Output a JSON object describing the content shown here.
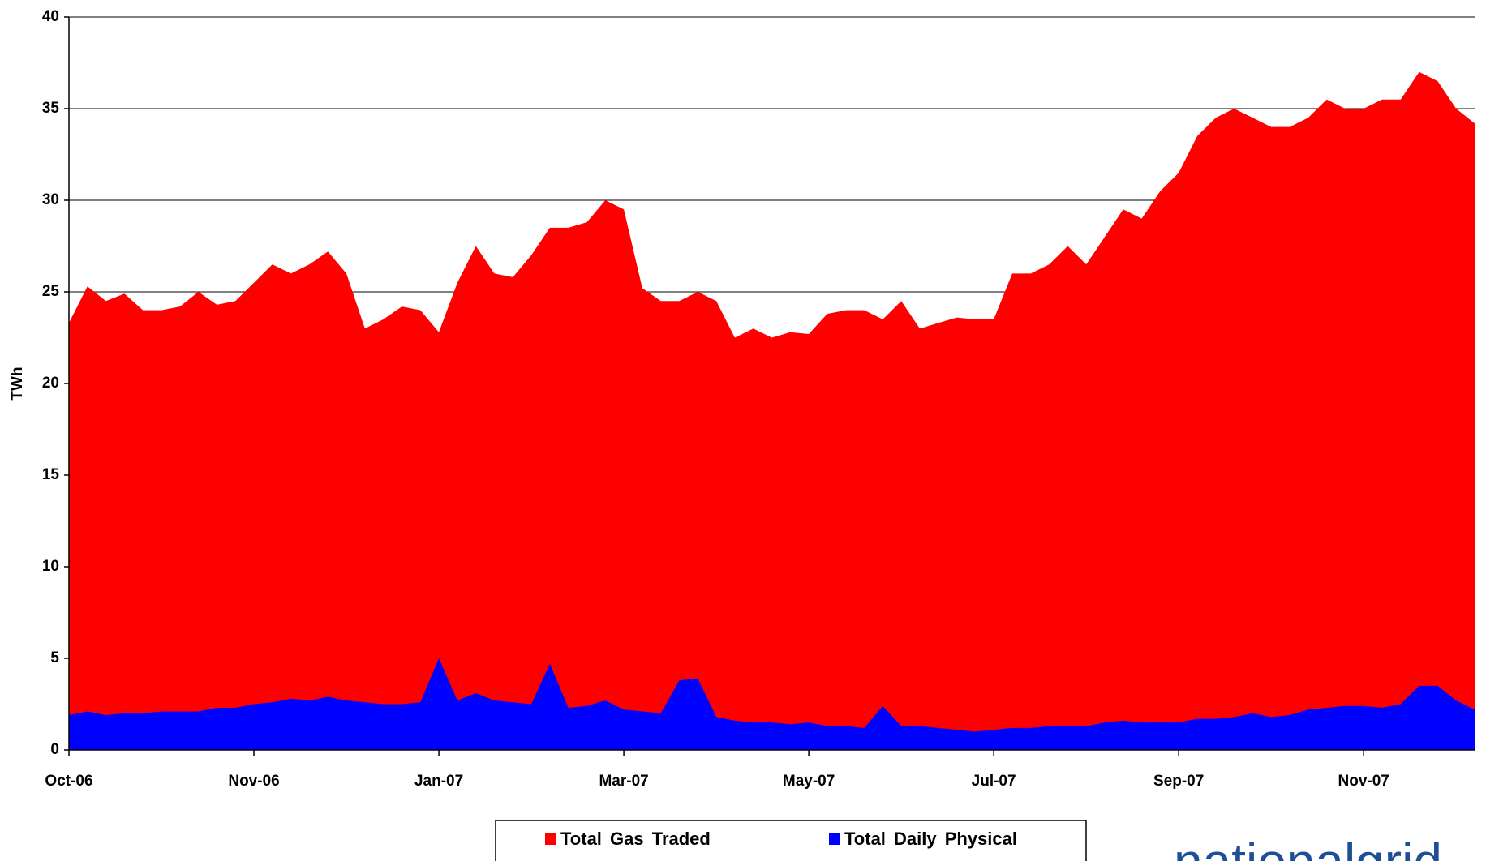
{
  "chart_data": {
    "type": "area",
    "y_label": "TWh",
    "logo": "nationalgrid",
    "categories": [
      "Oct-06",
      null,
      null,
      null,
      null,
      null,
      null,
      null,
      null,
      null,
      "Nov-06",
      null,
      null,
      null,
      null,
      null,
      null,
      null,
      null,
      null,
      "Jan-07",
      null,
      null,
      null,
      null,
      null,
      null,
      null,
      null,
      null,
      "Mar-07",
      null,
      null,
      null,
      null,
      null,
      null,
      null,
      null,
      null,
      "May-07",
      null,
      null,
      null,
      null,
      null,
      null,
      null,
      null,
      null,
      "Jul-07",
      null,
      null,
      null,
      null,
      null,
      null,
      null,
      null,
      null,
      "Sep-07",
      null,
      null,
      null,
      null,
      null,
      null,
      null,
      null,
      null,
      "Nov-07",
      null,
      null,
      null,
      null,
      null,
      null
    ],
    "series": [
      {
        "name": "Total Gas Traded",
        "color": "#ff0000",
        "values": [
          23.3,
          25.3,
          24.5,
          24.9,
          24.0,
          24.0,
          24.2,
          25.0,
          24.3,
          24.5,
          25.5,
          26.5,
          26.0,
          26.5,
          27.2,
          26.0,
          23.0,
          23.5,
          24.2,
          24.0,
          22.8,
          25.5,
          27.5,
          26.0,
          25.8,
          27.0,
          28.5,
          28.5,
          28.8,
          30.0,
          29.5,
          25.2,
          24.5,
          24.5,
          25.0,
          24.5,
          22.5,
          23.0,
          22.5,
          22.8,
          22.7,
          23.8,
          24.0,
          24.0,
          23.5,
          24.5,
          23.0,
          23.3,
          23.6,
          23.5,
          23.5,
          26.0,
          26.0,
          26.5,
          27.5,
          26.5,
          28.0,
          29.5,
          29.0,
          30.5,
          31.5,
          33.5,
          34.5,
          35.0,
          34.5,
          34.0,
          34.0,
          34.5,
          35.5,
          35.0,
          35.0,
          35.5,
          35.5,
          37.0,
          36.5,
          35.0,
          34.2
        ]
      },
      {
        "name": "Total Daily Physical",
        "color": "#0000ff",
        "values": [
          1.9,
          2.1,
          1.9,
          2.0,
          2.0,
          2.1,
          2.1,
          2.1,
          2.3,
          2.3,
          2.5,
          2.6,
          2.8,
          2.7,
          2.9,
          2.7,
          2.6,
          2.5,
          2.5,
          2.6,
          5.0,
          2.7,
          3.1,
          2.7,
          2.6,
          2.5,
          4.7,
          2.3,
          2.4,
          2.7,
          2.2,
          2.1,
          2.0,
          3.8,
          3.9,
          1.8,
          1.6,
          1.5,
          1.5,
          1.4,
          1.5,
          1.3,
          1.3,
          1.2,
          2.4,
          1.3,
          1.3,
          1.2,
          1.1,
          1.0,
          1.1,
          1.2,
          1.2,
          1.3,
          1.3,
          1.3,
          1.5,
          1.6,
          1.5,
          1.5,
          1.5,
          1.7,
          1.7,
          1.8,
          2.0,
          1.8,
          1.9,
          2.2,
          2.3,
          2.4,
          2.4,
          2.3,
          2.5,
          3.5,
          3.5,
          2.7,
          2.2
        ]
      }
    ],
    "ylim": [
      0,
      40
    ],
    "yticks": [
      0,
      5,
      10,
      15,
      20,
      25,
      30,
      35,
      40
    ],
    "grid": true,
    "legend": "bottom"
  }
}
